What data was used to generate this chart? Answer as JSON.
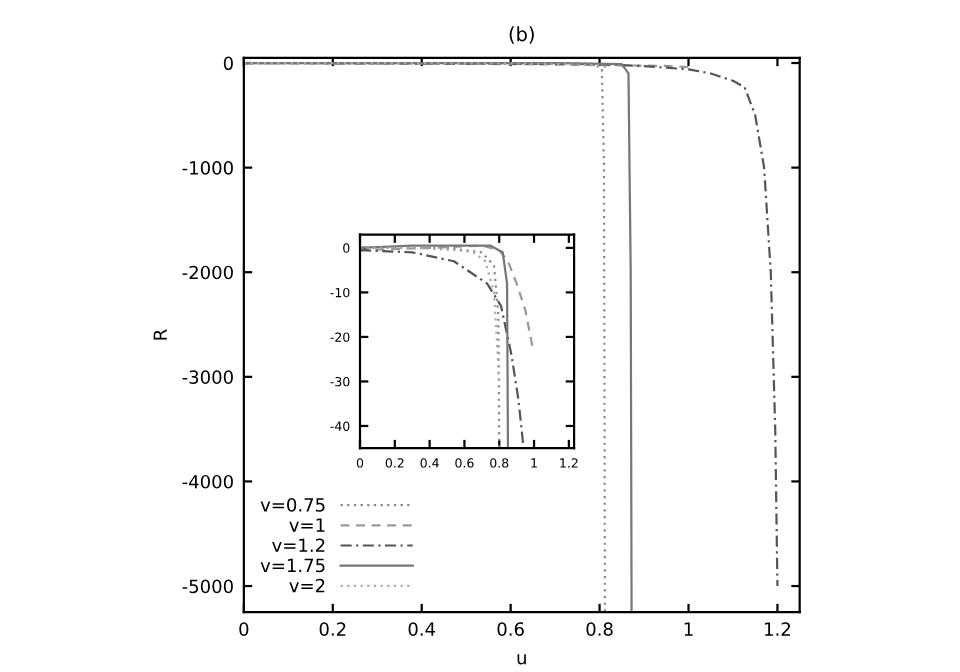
{
  "chart_data": [
    {
      "type": "line",
      "title": "(b)",
      "xlabel": "u",
      "ylabel": "R",
      "xlim": [
        0,
        1.25
      ],
      "ylim": [
        -5250,
        50
      ],
      "xticks": [
        0,
        0.2,
        0.4,
        0.6,
        0.8,
        1,
        1.2
      ],
      "yticks": [
        0,
        -1000,
        -2000,
        -3000,
        -4000,
        -5000
      ],
      "legend": "bottom left",
      "grid": false,
      "series": [
        {
          "name": "v=0.75",
          "color": "#888888",
          "line_style": "dotted",
          "x": [
            0,
            0.6,
            0.78,
            0.805,
            0.81,
            0.812
          ],
          "values": [
            0,
            0,
            -5,
            -50,
            -1000,
            -5250
          ]
        },
        {
          "name": "v=1",
          "color": "#999999",
          "line_style": "dashed",
          "x": [
            0,
            0.6,
            0.8,
            0.9,
            0.95,
            1.0
          ],
          "values": [
            0,
            -10,
            -20,
            -25,
            -28,
            -40
          ]
        },
        {
          "name": "v=1.2",
          "color": "#555555",
          "line_style": "dashdot",
          "x": [
            0,
            0.8,
            0.9,
            1.0,
            1.05,
            1.1,
            1.126,
            1.15,
            1.17,
            1.185,
            1.195,
            1.2
          ],
          "values": [
            0,
            -10,
            -30,
            -60,
            -100,
            -170,
            -230,
            -500,
            -1000,
            -2000,
            -3500,
            -5000
          ]
        },
        {
          "name": "v=1.75",
          "color": "#777777",
          "line_style": "solid",
          "x": [
            0,
            0.7,
            0.85,
            0.865,
            0.87,
            0.872
          ],
          "values": [
            0,
            0,
            -10,
            -100,
            -2000,
            -5250
          ]
        },
        {
          "name": "v=2",
          "color": "#aaaaaa",
          "line_style": "dotted",
          "x": [
            0,
            0.4,
            0.6,
            0.7,
            0.75,
            0.8,
            0.82
          ],
          "values": [
            0,
            -2,
            -5,
            -10,
            -15,
            -25,
            -45
          ]
        }
      ]
    },
    {
      "type": "line",
      "xlim": [
        0,
        1.23
      ],
      "ylim": [
        -45,
        3
      ],
      "xticks": [
        0,
        0.2,
        0.4,
        0.6,
        0.8,
        1,
        1.2
      ],
      "yticks": [
        0,
        -10,
        -20,
        -30,
        -40
      ],
      "legend": false,
      "grid": false,
      "series": [
        {
          "color": "#888888",
          "line_style": "dotted",
          "x": [
            0,
            0.5,
            0.7,
            0.77,
            0.795,
            0.8
          ],
          "values": [
            0,
            0,
            -1,
            -4,
            -15,
            -45
          ]
        },
        {
          "color": "#999999",
          "line_style": "dashed",
          "x": [
            0,
            0.4,
            0.7,
            0.8,
            0.85,
            0.9,
            0.95,
            0.99
          ],
          "values": [
            -0.5,
            0,
            0.5,
            -0.5,
            -3,
            -8,
            -14,
            -22
          ]
        },
        {
          "color": "#555555",
          "line_style": "dashdot",
          "x": [
            0,
            0.3,
            0.54,
            0.73,
            0.81,
            0.87,
            0.91,
            0.94
          ],
          "values": [
            -0.5,
            -1,
            -3,
            -8,
            -13,
            -24,
            -34,
            -45
          ]
        },
        {
          "color": "#777777",
          "line_style": "solid",
          "x": [
            0,
            0.3,
            0.75,
            0.82,
            0.845,
            0.85
          ],
          "values": [
            0,
            0.5,
            0.5,
            -1,
            -8,
            -45
          ]
        },
        {
          "color": "#aaaaaa",
          "line_style": "dotted",
          "x": [
            0,
            0.3,
            0.55,
            0.65,
            0.72,
            0.77,
            0.8
          ],
          "values": [
            0,
            0,
            -0.5,
            -1,
            -3,
            -10,
            -30
          ]
        }
      ]
    }
  ]
}
